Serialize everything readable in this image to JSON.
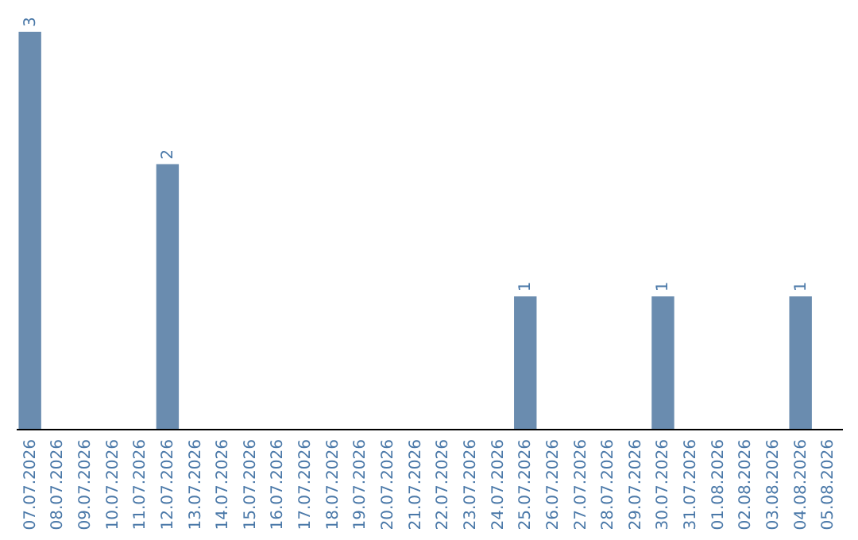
{
  "chart_data": {
    "type": "bar",
    "categories": [
      "07.07.2026",
      "08.07.2026",
      "09.07.2026",
      "10.07.2026",
      "11.07.2026",
      "12.07.2026",
      "13.07.2026",
      "14.07.2026",
      "15.07.2026",
      "16.07.2026",
      "17.07.2026",
      "18.07.2026",
      "19.07.2026",
      "20.07.2026",
      "21.07.2026",
      "22.07.2026",
      "23.07.2026",
      "24.07.2026",
      "25.07.2026",
      "26.07.2026",
      "27.07.2026",
      "28.07.2026",
      "29.07.2026",
      "30.07.2026",
      "31.07.2026",
      "01.08.2026",
      "02.08.2026",
      "03.08.2026",
      "04.08.2026",
      "05.08.2026"
    ],
    "values": [
      3,
      0,
      0,
      0,
      0,
      2,
      0,
      0,
      0,
      0,
      0,
      0,
      0,
      0,
      0,
      0,
      0,
      0,
      1,
      0,
      0,
      0,
      0,
      1,
      0,
      0,
      0,
      0,
      1,
      0
    ],
    "value_labels": [
      "3",
      null,
      null,
      null,
      null,
      "2",
      null,
      null,
      null,
      null,
      null,
      null,
      null,
      null,
      null,
      null,
      null,
      null,
      "1",
      null,
      null,
      null,
      null,
      "1",
      null,
      null,
      null,
      null,
      "1",
      null
    ],
    "color": "#6a8caf",
    "tick_labels": "x",
    "grid": false
  }
}
